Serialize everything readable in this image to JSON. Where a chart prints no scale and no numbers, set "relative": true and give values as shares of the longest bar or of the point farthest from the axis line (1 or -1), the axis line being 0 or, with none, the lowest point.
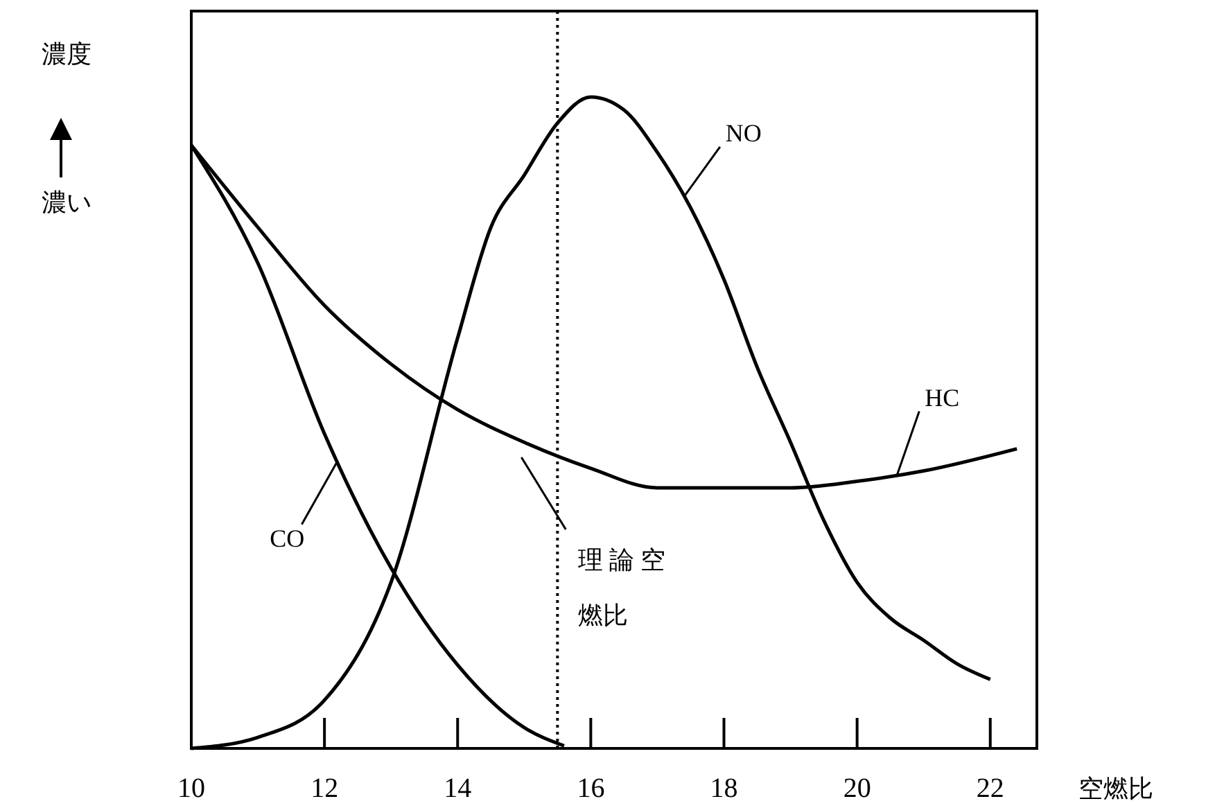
{
  "chart_data": {
    "type": "line",
    "relative": true,
    "xlabel": "空燃比",
    "ylabel": "濃度",
    "annotations": [
      "濃い"
    ],
    "xlim": [
      10,
      22.7
    ],
    "xticks": [
      10,
      12,
      14,
      16,
      18,
      20,
      22
    ],
    "grid": false,
    "marker": "none",
    "line_style": "solid",
    "series": [
      {
        "name": "CO",
        "color": "#000000",
        "x": [
          10,
          11,
          12,
          13,
          14,
          15,
          15.6
        ],
        "values": [
          0.926,
          0.745,
          0.483,
          0.277,
          0.128,
          0.032,
          0.004
        ]
      },
      {
        "name": "HC",
        "color": "#000000",
        "x": [
          10,
          11,
          12,
          13,
          14,
          15,
          16,
          17,
          18,
          19,
          20,
          21,
          22.4
        ],
        "values": [
          0.926,
          0.8,
          0.68,
          0.59,
          0.52,
          0.47,
          0.43,
          0.4,
          0.4,
          0.4,
          0.41,
          0.426,
          0.46
        ]
      },
      {
        "name": "NO",
        "color": "#000000",
        "x": [
          10,
          11,
          12,
          13,
          14,
          14.5,
          15,
          15.5,
          16,
          16.5,
          17,
          17.5,
          18,
          18.5,
          19,
          19.5,
          20,
          20.5,
          21,
          21.5,
          22
        ],
        "values": [
          0,
          0.017,
          0.074,
          0.255,
          0.63,
          0.8,
          0.88,
          0.96,
          1,
          0.98,
          0.915,
          0.83,
          0.72,
          0.585,
          0.47,
          0.35,
          0.255,
          0.2,
          0.166,
          0.13,
          0.106
        ]
      }
    ],
    "ref_lines": [
      {
        "axis": "x",
        "value": 15.5,
        "label": "理 論 空燃比",
        "color": "#000000",
        "line_style": "dotted"
      }
    ]
  }
}
